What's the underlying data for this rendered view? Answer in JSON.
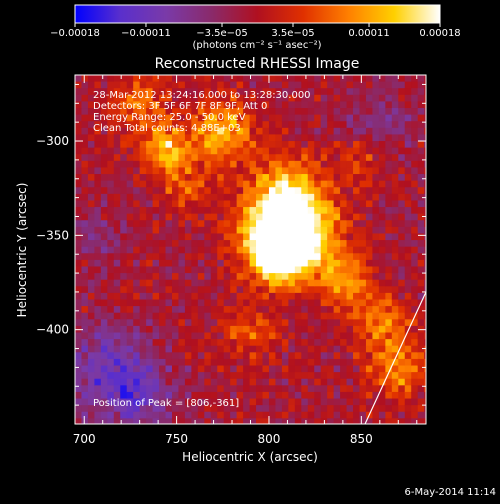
{
  "chart_data": {
    "type": "heatmap",
    "title": "Reconstructed RHESSI Image",
    "xlabel": "Heliocentric X (arcsec)",
    "ylabel": "Heliocentric Y (arcsec)",
    "xlim": [
      695,
      885
    ],
    "ylim": [
      -450,
      -265
    ],
    "xticks": [
      {
        "value": 700,
        "label": "700"
      },
      {
        "value": 750,
        "label": "750"
      },
      {
        "value": 800,
        "label": "800"
      },
      {
        "value": 850,
        "label": "850"
      }
    ],
    "yticks": [
      {
        "value": -300,
        "label": "−300"
      },
      {
        "value": -350,
        "label": "−350"
      },
      {
        "value": -400,
        "label": "−400"
      }
    ],
    "colorbar": {
      "min": -0.00018,
      "max": 0.00018,
      "ticks": [
        {
          "value": -0.00018,
          "label": "−0.00018"
        },
        {
          "value": -0.00011,
          "label": "−0.00011"
        },
        {
          "value": -3.5e-05,
          "label": "−3.5e−05"
        },
        {
          "value": 3.5e-05,
          "label": "3.5e−05"
        },
        {
          "value": 0.00011,
          "label": "0.00011"
        },
        {
          "value": 0.00018,
          "label": "0.00018"
        }
      ],
      "unit_label": "(photons cm⁻² s⁻¹ asec⁻²)",
      "stops": [
        "#0000ff",
        "#5a2fcc",
        "#7a3aa8",
        "#8a2a6a",
        "#b01020",
        "#e03000",
        "#ff8000",
        "#ffd000",
        "#ffffff"
      ]
    },
    "info_lines": [
      "28-Mar-2012 13:24:16.000 to 13:28:30.000",
      "Detectors: 3F 5F 6F 7F 8F 9F, Att 0",
      "Energy Range: 25.0 - 50.0 keV",
      "Clean     Total counts: 4.88E+03"
    ],
    "peak_text": "Position of Peak = [806,-361]",
    "peak": {
      "x": 806,
      "y": -361
    },
    "hot_spots": [
      {
        "x": 745,
        "y": -305,
        "amp": 0.00013,
        "r": 9
      },
      {
        "x": 775,
        "y": -295,
        "amp": 0.00013,
        "r": 12
      },
      {
        "x": 755,
        "y": -325,
        "amp": 6e-05,
        "r": 10
      },
      {
        "x": 810,
        "y": -330,
        "amp": 0.00015,
        "r": 14
      },
      {
        "x": 800,
        "y": -350,
        "amp": 0.00014,
        "r": 14
      },
      {
        "x": 820,
        "y": -350,
        "amp": 0.00015,
        "r": 14
      },
      {
        "x": 806,
        "y": -361,
        "amp": 0.00018,
        "r": 10
      },
      {
        "x": 840,
        "y": -375,
        "amp": 0.00011,
        "r": 10
      },
      {
        "x": 860,
        "y": -395,
        "amp": 9e-05,
        "r": 10
      },
      {
        "x": 870,
        "y": -420,
        "amp": 0.0001,
        "r": 12
      },
      {
        "x": 730,
        "y": -280,
        "amp": 8e-05,
        "r": 12
      },
      {
        "x": 790,
        "y": -400,
        "amp": 7e-05,
        "r": 10
      },
      {
        "x": 850,
        "y": -310,
        "amp": 6e-05,
        "r": 10
      }
    ],
    "cold_spots": [
      {
        "x": 710,
        "y": -420,
        "amp": -9e-05,
        "r": 16
      },
      {
        "x": 730,
        "y": -435,
        "amp": -8e-05,
        "r": 14
      },
      {
        "x": 705,
        "y": -350,
        "amp": -4e-05,
        "r": 12
      },
      {
        "x": 860,
        "y": -290,
        "amp": -5e-05,
        "r": 14
      }
    ],
    "limb_line": [
      {
        "x": 852,
        "y": -450
      },
      {
        "x": 885,
        "y": -380
      }
    ]
  },
  "footer_date": "6-May-2014 11:14"
}
